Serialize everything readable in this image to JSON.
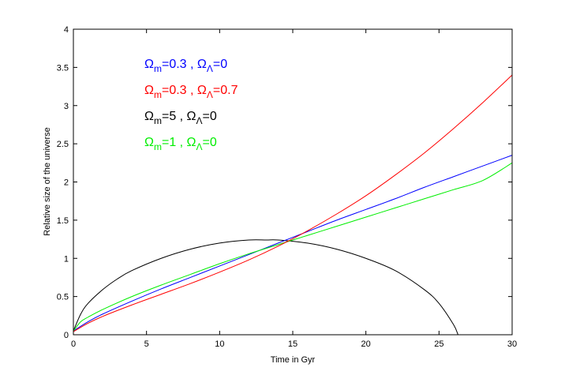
{
  "chart_data": {
    "type": "line",
    "title": "",
    "xlabel": "Time in Gyr",
    "ylabel": "Relative size of the universe",
    "xlim": [
      0,
      30
    ],
    "ylim": [
      0,
      4
    ],
    "xticks": [
      0,
      5,
      10,
      15,
      20,
      25,
      30
    ],
    "yticks": [
      0,
      0.5,
      1,
      1.5,
      2,
      2.5,
      3,
      3.5,
      4
    ],
    "grid": false,
    "legend_placement": "top-left",
    "series": [
      {
        "name": "Ωm=0.3 , ΩΛ=0",
        "label_main": "Ω",
        "label_sub1": "m",
        "label_mid": "=0.3 , Ω",
        "label_sub2": "Λ",
        "label_end": "=0",
        "color": "#0000ff",
        "x": [
          0,
          1,
          2,
          4,
          6,
          8,
          10,
          12,
          14,
          16,
          18,
          20,
          22,
          24,
          26,
          28,
          30
        ],
        "y": [
          0.05,
          0.17,
          0.27,
          0.44,
          0.6,
          0.75,
          0.9,
          1.05,
          1.2,
          1.35,
          1.5,
          1.64,
          1.78,
          1.93,
          2.07,
          2.21,
          2.35
        ]
      },
      {
        "name": "Ωm=0.3 , ΩΛ=0.7",
        "label_main": "Ω",
        "label_sub1": "m",
        "label_mid": "=0.3 , Ω",
        "label_sub2": "Λ",
        "label_end": "=0.7",
        "color": "#ff0000",
        "x": [
          0,
          1,
          2,
          4,
          6,
          8,
          10,
          12,
          14,
          16,
          18,
          20,
          22,
          24,
          26,
          28,
          30
        ],
        "y": [
          0.04,
          0.15,
          0.24,
          0.39,
          0.53,
          0.67,
          0.82,
          0.98,
          1.16,
          1.36,
          1.58,
          1.82,
          2.09,
          2.38,
          2.7,
          3.04,
          3.4
        ]
      },
      {
        "name": "Ωm=5 , ΩΛ=0",
        "label_main": "Ω",
        "label_sub1": "m",
        "label_mid": "=5 , Ω",
        "label_sub2": "Λ",
        "label_end": "=0",
        "color": "#000000",
        "x": [
          0,
          0.5,
          1,
          2,
          3,
          4,
          6,
          8,
          10,
          12,
          13.2,
          14,
          16,
          18,
          20,
          22,
          24,
          25,
          26,
          26.3
        ],
        "y": [
          0.05,
          0.27,
          0.41,
          0.59,
          0.73,
          0.84,
          1.0,
          1.12,
          1.2,
          1.24,
          1.24,
          1.24,
          1.2,
          1.12,
          1.0,
          0.84,
          0.59,
          0.41,
          0.13,
          0.0
        ]
      },
      {
        "name": "Ωm=1 , ΩΛ=0",
        "label_main": "Ω",
        "label_sub1": "m",
        "label_mid": "=1 , Ω",
        "label_sub2": "Λ",
        "label_end": "=0",
        "color": "#00ee00",
        "x": [
          0,
          0.5,
          1,
          2,
          4,
          6,
          8,
          10,
          12,
          14,
          16,
          18,
          20,
          22,
          24,
          26,
          28,
          30
        ],
        "y": [
          0.05,
          0.17,
          0.23,
          0.33,
          0.5,
          0.65,
          0.79,
          0.93,
          1.06,
          1.18,
          1.3,
          1.42,
          1.54,
          1.66,
          1.78,
          1.9,
          2.02,
          2.25
        ]
      }
    ]
  }
}
